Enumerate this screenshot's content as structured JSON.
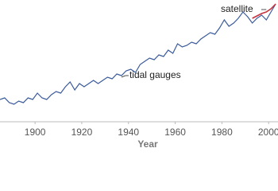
{
  "chart_data": {
    "type": "line",
    "x_label": "Year",
    "xlim": [
      1885,
      2004
    ],
    "xticks": [
      1900,
      1920,
      1940,
      1960,
      1980,
      2000
    ],
    "ylim": [
      0,
      150
    ],
    "series": [
      {
        "name": "tidal gauges",
        "color": "#3b5b9b",
        "x": [
          1885,
          1887,
          1889,
          1891,
          1893,
          1895,
          1897,
          1899,
          1901,
          1903,
          1905,
          1907,
          1909,
          1911,
          1913,
          1915,
          1917,
          1919,
          1921,
          1923,
          1925,
          1927,
          1929,
          1931,
          1933,
          1935,
          1937,
          1939,
          1941,
          1943,
          1945,
          1947,
          1949,
          1951,
          1953,
          1955,
          1957,
          1959,
          1961,
          1963,
          1965,
          1967,
          1969,
          1971,
          1973,
          1975,
          1977,
          1979,
          1981,
          1983,
          1985,
          1987,
          1989,
          1991,
          1993,
          1995,
          1997,
          1999,
          2001,
          2003
        ],
        "values": [
          28,
          30,
          24,
          22,
          26,
          24,
          30,
          28,
          36,
          30,
          28,
          34,
          38,
          36,
          44,
          50,
          40,
          48,
          44,
          48,
          52,
          48,
          52,
          56,
          54,
          60,
          58,
          64,
          66,
          62,
          72,
          76,
          80,
          78,
          84,
          82,
          90,
          86,
          98,
          94,
          96,
          100,
          98,
          104,
          108,
          112,
          110,
          118,
          128,
          120,
          124,
          130,
          138,
          132,
          124,
          130,
          134,
          128,
          138,
          148
        ]
      },
      {
        "name": "satellite",
        "color": "#c8323c",
        "x": [
          1993,
          1995,
          1997,
          1999,
          2001,
          2003
        ],
        "values": [
          130,
          133,
          136,
          138,
          142,
          148
        ]
      }
    ]
  }
}
